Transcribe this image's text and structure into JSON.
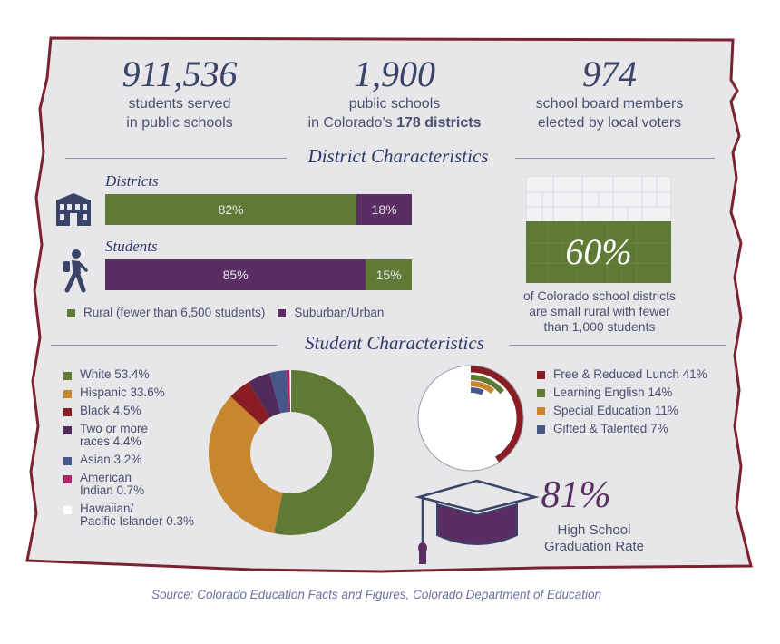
{
  "stats": [
    {
      "value": "911,536",
      "line1": "students served",
      "line2": "in public schools",
      "line2_bold": ""
    },
    {
      "value": "1,900",
      "line1": "public schools",
      "line2": "in Colorado’s ",
      "line2_bold": "178 districts"
    },
    {
      "value": "974",
      "line1": "school board members",
      "line2": "elected by local voters",
      "line2_bold": ""
    }
  ],
  "sections": {
    "district": "District Characteristics",
    "student": "Student Characteristics"
  },
  "bars": {
    "districts_label": "Districts",
    "students_label": "Students",
    "legend_rural": "Rural (fewer than 6,500 students)",
    "legend_suburban": "Suburban/Urban",
    "icons": [
      "school-building-icon",
      "walking-student-icon"
    ]
  },
  "map_stat": {
    "value": "60%",
    "line1": "of Colorado school districts",
    "line2": "are small rural with fewer",
    "line3": "than 1,000 students"
  },
  "grad": {
    "value": "81%",
    "line1": "High School",
    "line2": "Graduation Rate",
    "icon": "graduation-cap-icon"
  },
  "source": "Source: Colorado Education Facts and Figures, Colorado Department of Education",
  "colors": {
    "green": "#5e7a35",
    "purple": "#5a2e62",
    "orange": "#c6872f",
    "red": "#8a1c24",
    "dark_purple": "#4f2a5a",
    "blue": "#46578a",
    "magenta": "#b0266a",
    "white": "#ffffff",
    "border": "#7b2230",
    "panel": "#e7e7ea"
  },
  "chart_data": [
    {
      "type": "bar",
      "orientation": "horizontal-stacked",
      "categories": [
        "Districts",
        "Students"
      ],
      "series": [
        {
          "name": "Rural (fewer than 6,500 students)",
          "values": [
            82,
            85
          ],
          "labels": [
            "82%",
            "85%"
          ]
        },
        {
          "name": "Suburban/Urban",
          "values": [
            18,
            15
          ],
          "labels": [
            "18%",
            "15%"
          ]
        }
      ]
    },
    {
      "type": "pie",
      "style": "donut",
      "slices": [
        {
          "name": "White 53.4%",
          "value": 53.4,
          "color": "#5e7a35"
        },
        {
          "name": "Hispanic 33.6%",
          "value": 33.6,
          "color": "#c6872f"
        },
        {
          "name": "Black 4.5%",
          "value": 4.5,
          "color": "#8a1c24"
        },
        {
          "name": "Two or more races 4.4%",
          "value": 4.4,
          "color": "#4f2a5a",
          "name_lines": [
            "Two or more",
            "races 4.4%"
          ]
        },
        {
          "name": "Asian 3.2%",
          "value": 3.2,
          "color": "#46578a"
        },
        {
          "name": "American Indian 0.7%",
          "value": 0.7,
          "color": "#b0266a",
          "name_lines": [
            "American",
            "Indian 0.7%"
          ]
        },
        {
          "name": "Hawaiian/ Pacific Islander 0.3%",
          "value": 0.3,
          "color": "#ffffff",
          "name_lines": [
            "Hawaiian/",
            "Pacific Islander 0.3%"
          ]
        }
      ]
    },
    {
      "type": "bar",
      "style": "radial",
      "series": [
        {
          "name": "Free & Reduced Lunch 41%",
          "value": 41,
          "color": "#8a1c24"
        },
        {
          "name": "Learning English 14%",
          "value": 14,
          "color": "#5e7a35"
        },
        {
          "name": "Special Education 11%",
          "value": 11,
          "color": "#c6872f"
        },
        {
          "name": "Gifted & Talented 7%",
          "value": 7,
          "color": "#46578a"
        }
      ]
    }
  ]
}
